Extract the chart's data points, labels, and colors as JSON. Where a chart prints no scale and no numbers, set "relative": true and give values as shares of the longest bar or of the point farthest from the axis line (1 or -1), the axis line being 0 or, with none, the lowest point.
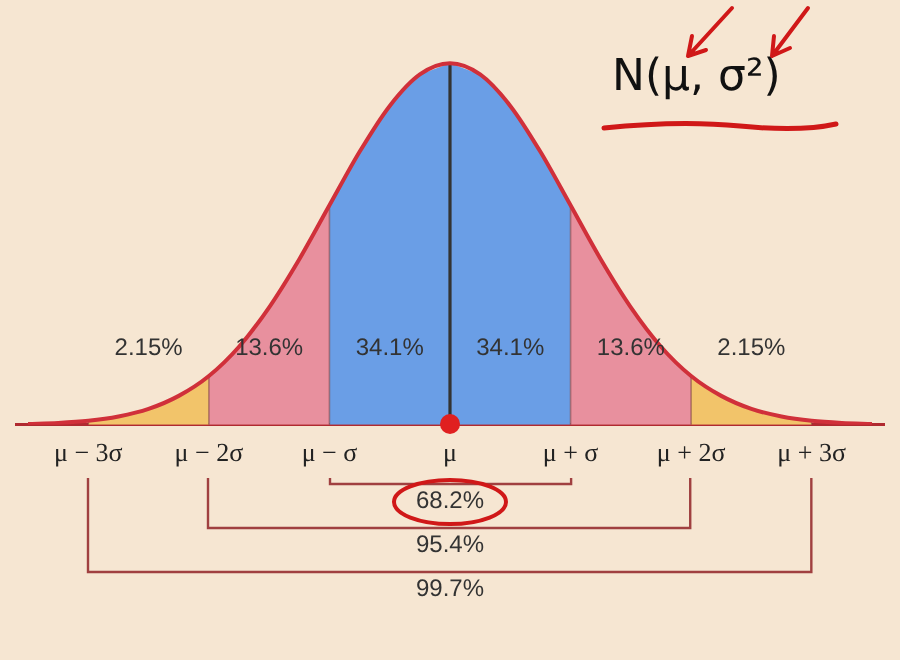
{
  "chart_data": {
    "type": "line",
    "relative": true,
    "color": "#d0303a",
    "x": [
      -3.5,
      -3.25,
      -3,
      -2.75,
      -2.5,
      -2.25,
      -2,
      -1.75,
      -1.5,
      -1.25,
      -1,
      -0.75,
      -0.5,
      -0.25,
      0,
      0.25,
      0.5,
      0.75,
      1,
      1.25,
      1.5,
      1.75,
      2,
      2.25,
      2.5,
      2.75,
      3,
      3.25,
      3.5
    ],
    "values": [
      0.002,
      0.005,
      0.011,
      0.023,
      0.044,
      0.08,
      0.135,
      0.216,
      0.325,
      0.458,
      0.607,
      0.755,
      0.882,
      0.969,
      1,
      0.969,
      0.882,
      0.755,
      0.607,
      0.458,
      0.325,
      0.216,
      0.135,
      0.08,
      0.044,
      0.023,
      0.011,
      0.005,
      0.002
    ],
    "xlim": [
      -3.6,
      3.6
    ],
    "xticks": [
      {
        "value": -3,
        "label": "μ − 3σ"
      },
      {
        "value": -2,
        "label": "μ − 2σ"
      },
      {
        "value": -1,
        "label": "μ − σ"
      },
      {
        "value": 0,
        "label": "μ"
      },
      {
        "value": 1,
        "label": "μ + σ"
      },
      {
        "value": 2,
        "label": "μ + 2σ"
      },
      {
        "value": 3,
        "label": "μ + 3σ"
      }
    ],
    "bands": [
      {
        "axis": "x",
        "from": -3,
        "to": -2,
        "label": "2.15%",
        "color": "#f2c46a"
      },
      {
        "axis": "x",
        "from": -2,
        "to": -1,
        "label": "13.6%",
        "color": "#e8909e"
      },
      {
        "axis": "x",
        "from": -1,
        "to": 0,
        "label": "34.1%",
        "color": "#6a9ee6"
      },
      {
        "axis": "x",
        "from": 0,
        "to": 1,
        "label": "34.1%",
        "color": "#6a9ee6"
      },
      {
        "axis": "x",
        "from": 1,
        "to": 2,
        "label": "13.6%",
        "color": "#e8909e"
      },
      {
        "axis": "x",
        "from": 2,
        "to": 3,
        "label": "2.15%",
        "color": "#f2c46a"
      }
    ],
    "grid": "x",
    "ref_lines": [
      {
        "axis": "x",
        "value": 0,
        "color": "#333333"
      }
    ],
    "annotations": [
      "N(μ, σ²)",
      "68.2%",
      "95.4%",
      "99.7%"
    ]
  }
}
